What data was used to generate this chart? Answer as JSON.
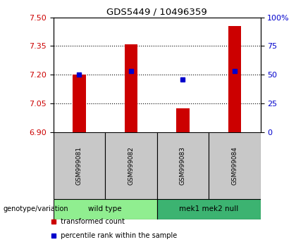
{
  "title": "GDS5449 / 10496359",
  "samples": [
    "GSM999081",
    "GSM999082",
    "GSM999083",
    "GSM999084"
  ],
  "red_values": [
    7.2,
    7.36,
    7.025,
    7.455
  ],
  "blue_percentiles": [
    50,
    53,
    46,
    53
  ],
  "y_min": 6.9,
  "y_max": 7.5,
  "y_ticks": [
    6.9,
    7.05,
    7.2,
    7.35,
    7.5
  ],
  "right_y_ticks": [
    0,
    25,
    50,
    75,
    100
  ],
  "right_y_labels": [
    "0",
    "25",
    "50",
    "75",
    "100%"
  ],
  "groups": [
    {
      "label": "wild type",
      "samples": [
        0,
        1
      ],
      "color": "#90EE90"
    },
    {
      "label": "mek1 mek2 null",
      "samples": [
        2,
        3
      ],
      "color": "#3CB371"
    }
  ],
  "bar_color": "#CC0000",
  "dot_color": "#0000CC",
  "bar_width": 0.25,
  "baseline": 6.9,
  "genotype_label": "genotype/variation",
  "legend_items": [
    {
      "label": "  transformed count",
      "color": "#CC0000"
    },
    {
      "label": "  percentile rank within the sample",
      "color": "#0000CC"
    }
  ],
  "sample_bg_color": "#C8C8C8",
  "left_axis_color": "#CC0000",
  "right_axis_color": "#0000CC",
  "arrow_color": "#999999"
}
